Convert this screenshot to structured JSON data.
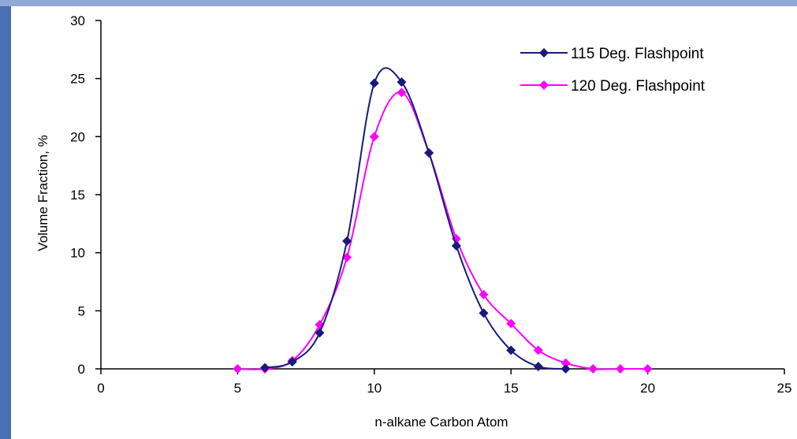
{
  "colors": {
    "frame_blue": "#4a6fb5",
    "frame_blue_light": "#8fa8d8",
    "series_1": "#1a1a7a",
    "series_2": "#ff00ff",
    "axis": "#000000"
  },
  "chart_data": {
    "type": "line",
    "title": "",
    "xlabel": "n-alkane Carbon Atom",
    "ylabel": "Volume Fraction, %",
    "xlim": [
      0,
      25
    ],
    "ylim": [
      0,
      30
    ],
    "xticks": [
      0,
      5,
      10,
      15,
      20,
      25
    ],
    "yticks": [
      0,
      5,
      10,
      15,
      20,
      25,
      30
    ],
    "grid": false,
    "legend_position": "top-right",
    "smoothed": true,
    "marker": "diamond",
    "series": [
      {
        "name": "115 Deg. Flashpoint",
        "x": [
          6,
          7,
          8,
          9,
          10,
          11,
          12,
          13,
          14,
          15,
          16,
          17
        ],
        "y": [
          0.1,
          0.6,
          3.1,
          11.0,
          24.6,
          24.7,
          18.6,
          10.6,
          4.8,
          1.6,
          0.2,
          0.0
        ]
      },
      {
        "name": "120 Deg. Flashpoint",
        "x": [
          5,
          6,
          7,
          8,
          9,
          10,
          11,
          12,
          13,
          14,
          15,
          16,
          17,
          18,
          19,
          20
        ],
        "y": [
          0.0,
          0.0,
          0.7,
          3.8,
          9.6,
          20.0,
          23.8,
          18.6,
          11.2,
          6.4,
          3.9,
          1.6,
          0.5,
          0.0,
          0.0,
          0.0
        ]
      }
    ]
  }
}
